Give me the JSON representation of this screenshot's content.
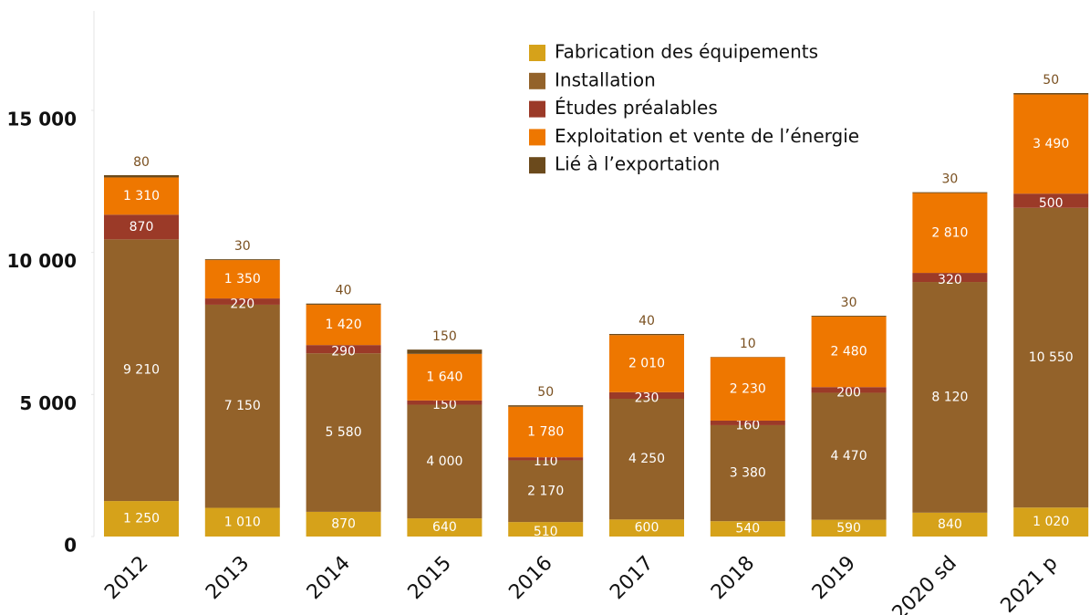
{
  "chart_data": {
    "type": "stacked_bar",
    "categories": [
      "2012",
      "2013",
      "2014",
      "2015",
      "2016",
      "2017",
      "2018",
      "2019",
      "2020 sd",
      "2021 p"
    ],
    "series": [
      {
        "name": "Fabrication des équipements",
        "color": "#d6a21a",
        "values": [
          1250,
          1010,
          870,
          640,
          510,
          600,
          540,
          590,
          840,
          1020
        ],
        "value_labels": [
          "1 250",
          "1 010",
          "870",
          "640",
          "510",
          "600",
          "540",
          "590",
          "840",
          "1 020"
        ]
      },
      {
        "name": "Installation",
        "color": "#93622a",
        "values": [
          9210,
          7150,
          5580,
          4000,
          2170,
          4250,
          3380,
          4470,
          8120,
          10550
        ],
        "value_labels": [
          "9 210",
          "7 150",
          "5 580",
          "4 000",
          "2 170",
          "4 250",
          "3 380",
          "4 470",
          "8 120",
          "10 550"
        ]
      },
      {
        "name": "Études préalables",
        "color": "#9b3a28",
        "values": [
          870,
          220,
          290,
          150,
          110,
          230,
          160,
          200,
          320,
          500
        ],
        "value_labels": [
          "870",
          "220",
          "290",
          "150",
          "110",
          "230",
          "160",
          "200",
          "320",
          "500"
        ]
      },
      {
        "name": "Exploitation et vente de l’énergie",
        "color": "#ee7700",
        "values": [
          1310,
          1350,
          1420,
          1640,
          1780,
          2010,
          2230,
          2480,
          2810,
          3490
        ],
        "value_labels": [
          "1 310",
          "1 350",
          "1 420",
          "1 640",
          "1 780",
          "2 010",
          "2 230",
          "2 480",
          "2 810",
          "3 490"
        ]
      },
      {
        "name": "Lié à l’exportation",
        "color": "#6b4a1c",
        "values": [
          80,
          30,
          40,
          150,
          50,
          40,
          10,
          30,
          30,
          50
        ],
        "value_labels": [
          "80",
          "30",
          "40",
          "150",
          "50",
          "40",
          "10",
          "30",
          "30",
          "50"
        ]
      }
    ],
    "ylim": [
      0,
      18500
    ],
    "yticks": [
      0,
      {
        "value": 5000,
        "label": "5 000"
      },
      {
        "value": 10000,
        "label": "10 000"
      },
      {
        "value": 15000,
        "label": "15 000"
      }
    ],
    "legend": "top-right"
  }
}
